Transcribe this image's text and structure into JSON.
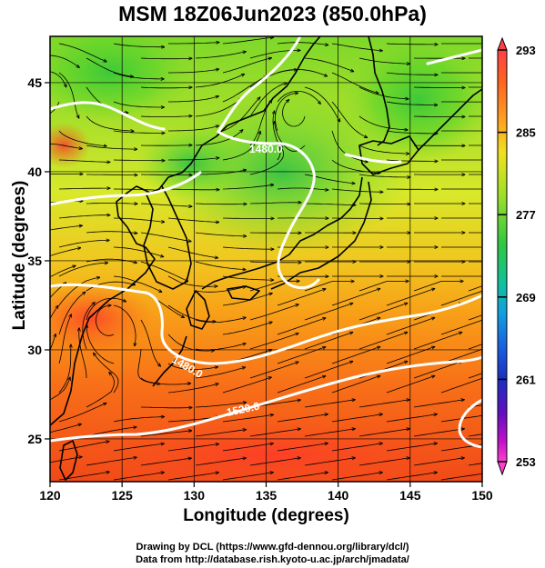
{
  "title": "MSM 18Z06Jun2023 (850.0hPa)",
  "x_axis": {
    "label": "Longitude (degrees)",
    "ticks": [
      "120",
      "125",
      "130",
      "135",
      "140",
      "145",
      "150"
    ]
  },
  "y_axis": {
    "label": "Latitude  (degrees)",
    "ticks": [
      "25",
      "30",
      "35",
      "40",
      "45"
    ]
  },
  "colorbar": {
    "ticks": [
      "293",
      "285",
      "277",
      "269",
      "261",
      "253"
    ],
    "colors": [
      "#ff4060",
      "#ff5a2a",
      "#ff8a1a",
      "#ffc21a",
      "#e8f02a",
      "#a8e82a",
      "#5ad82a",
      "#22c85a",
      "#10b8a8",
      "#1a8ae8",
      "#1a4ad8",
      "#2a1ab8",
      "#7a10c8",
      "#d010c8",
      "#ff40d0"
    ]
  },
  "contour_labels": [
    "1480.0",
    "1480.0",
    "1520.0"
  ],
  "credits": [
    "Drawing by DCL (https://www.gfd-dennou.org/library/dcl/)",
    "Data from http://database.rish.kyoto-u.ac.jp/arch/jmadata/"
  ]
}
